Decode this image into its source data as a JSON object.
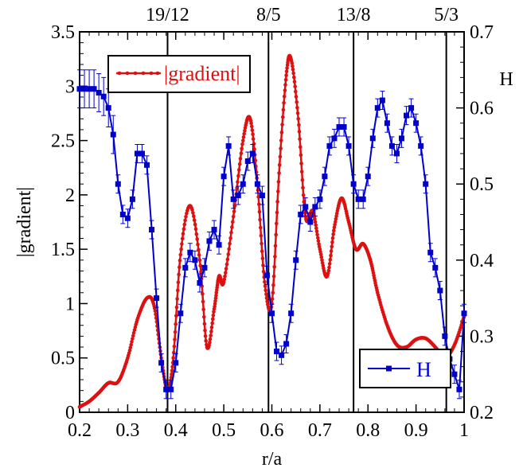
{
  "chart_data": {
    "type": "line",
    "xlabel": "r/a",
    "ylabel_left": "|gradient|",
    "ylabel_right": "H",
    "xlim": [
      0.2,
      1.0
    ],
    "ylim_left": [
      0,
      3.5
    ],
    "ylim_right": [
      0.2,
      0.7
    ],
    "x_ticks": [
      "0.2",
      "0.3",
      "0.4",
      "0.5",
      "0.6",
      "0.7",
      "0.8",
      "0.9",
      "1"
    ],
    "y_left_ticks": [
      "0",
      "0.5",
      "1",
      "1.5",
      "2",
      "2.5",
      "3",
      "3.5"
    ],
    "y_right_ticks": [
      "0.2",
      "0.3",
      "0.4",
      "0.5",
      "0.6",
      "0.7"
    ],
    "grid": false,
    "rational_surfaces": [
      {
        "label": "19/12",
        "x": 0.383
      },
      {
        "label": "8/5",
        "x": 0.593
      },
      {
        "label": "13/8",
        "x": 0.77
      },
      {
        "label": "5/3",
        "x": 0.963
      }
    ],
    "series": [
      {
        "name": "|gradient|",
        "axis": "left",
        "color": "#dd1111",
        "marker": "circle-dense",
        "x": [
          0.2,
          0.22,
          0.24,
          0.26,
          0.28,
          0.3,
          0.32,
          0.34,
          0.355,
          0.37,
          0.383,
          0.395,
          0.41,
          0.43,
          0.45,
          0.465,
          0.48,
          0.49,
          0.5,
          0.52,
          0.54,
          0.555,
          0.57,
          0.585,
          0.6,
          0.615,
          0.63,
          0.64,
          0.655,
          0.67,
          0.685,
          0.7,
          0.715,
          0.73,
          0.745,
          0.76,
          0.775,
          0.79,
          0.805,
          0.82,
          0.84,
          0.86,
          0.88,
          0.9,
          0.92,
          0.94,
          0.96,
          0.98,
          1.0
        ],
        "y": [
          0.05,
          0.1,
          0.18,
          0.27,
          0.28,
          0.5,
          0.85,
          1.05,
          0.98,
          0.5,
          0.2,
          0.5,
          1.45,
          1.9,
          1.4,
          0.6,
          0.95,
          1.25,
          1.2,
          1.8,
          2.5,
          2.7,
          2.1,
          1.2,
          1.0,
          2.2,
          3.1,
          3.25,
          2.7,
          1.8,
          1.85,
          1.5,
          1.25,
          1.7,
          1.97,
          1.75,
          1.5,
          1.55,
          1.4,
          1.1,
          0.8,
          0.62,
          0.6,
          0.67,
          0.68,
          0.6,
          0.5,
          0.62,
          0.88
        ]
      },
      {
        "name": "H",
        "axis": "right",
        "color": "#0000cc",
        "marker": "square",
        "x": [
          0.2,
          0.21,
          0.22,
          0.23,
          0.24,
          0.25,
          0.26,
          0.27,
          0.28,
          0.29,
          0.3,
          0.31,
          0.32,
          0.33,
          0.34,
          0.35,
          0.36,
          0.37,
          0.38,
          0.39,
          0.4,
          0.41,
          0.42,
          0.43,
          0.44,
          0.45,
          0.46,
          0.47,
          0.48,
          0.49,
          0.5,
          0.51,
          0.52,
          0.53,
          0.54,
          0.55,
          0.56,
          0.57,
          0.58,
          0.59,
          0.6,
          0.61,
          0.62,
          0.63,
          0.64,
          0.65,
          0.66,
          0.67,
          0.68,
          0.69,
          0.7,
          0.71,
          0.72,
          0.73,
          0.74,
          0.75,
          0.76,
          0.77,
          0.78,
          0.79,
          0.8,
          0.81,
          0.82,
          0.83,
          0.84,
          0.85,
          0.86,
          0.87,
          0.88,
          0.89,
          0.9,
          0.91,
          0.92,
          0.93,
          0.94,
          0.95,
          0.96,
          0.97,
          0.98,
          0.99,
          1.0
        ],
        "y": [
          0.625,
          0.625,
          0.625,
          0.625,
          0.62,
          0.615,
          0.6,
          0.565,
          0.5,
          0.46,
          0.455,
          0.48,
          0.54,
          0.54,
          0.525,
          0.44,
          0.35,
          0.265,
          0.23,
          0.23,
          0.265,
          0.33,
          0.39,
          0.41,
          0.4,
          0.37,
          0.39,
          0.425,
          0.44,
          0.42,
          0.51,
          0.55,
          0.48,
          0.485,
          0.5,
          0.53,
          0.54,
          0.5,
          0.485,
          0.38,
          0.33,
          0.28,
          0.275,
          0.29,
          0.33,
          0.4,
          0.46,
          0.47,
          0.45,
          0.47,
          0.48,
          0.51,
          0.55,
          0.56,
          0.575,
          0.575,
          0.55,
          0.5,
          0.48,
          0.48,
          0.51,
          0.56,
          0.6,
          0.61,
          0.58,
          0.55,
          0.54,
          0.56,
          0.59,
          0.6,
          0.58,
          0.55,
          0.5,
          0.41,
          0.39,
          0.36,
          0.3,
          0.27,
          0.25,
          0.23,
          0.33
        ]
      }
    ]
  }
}
